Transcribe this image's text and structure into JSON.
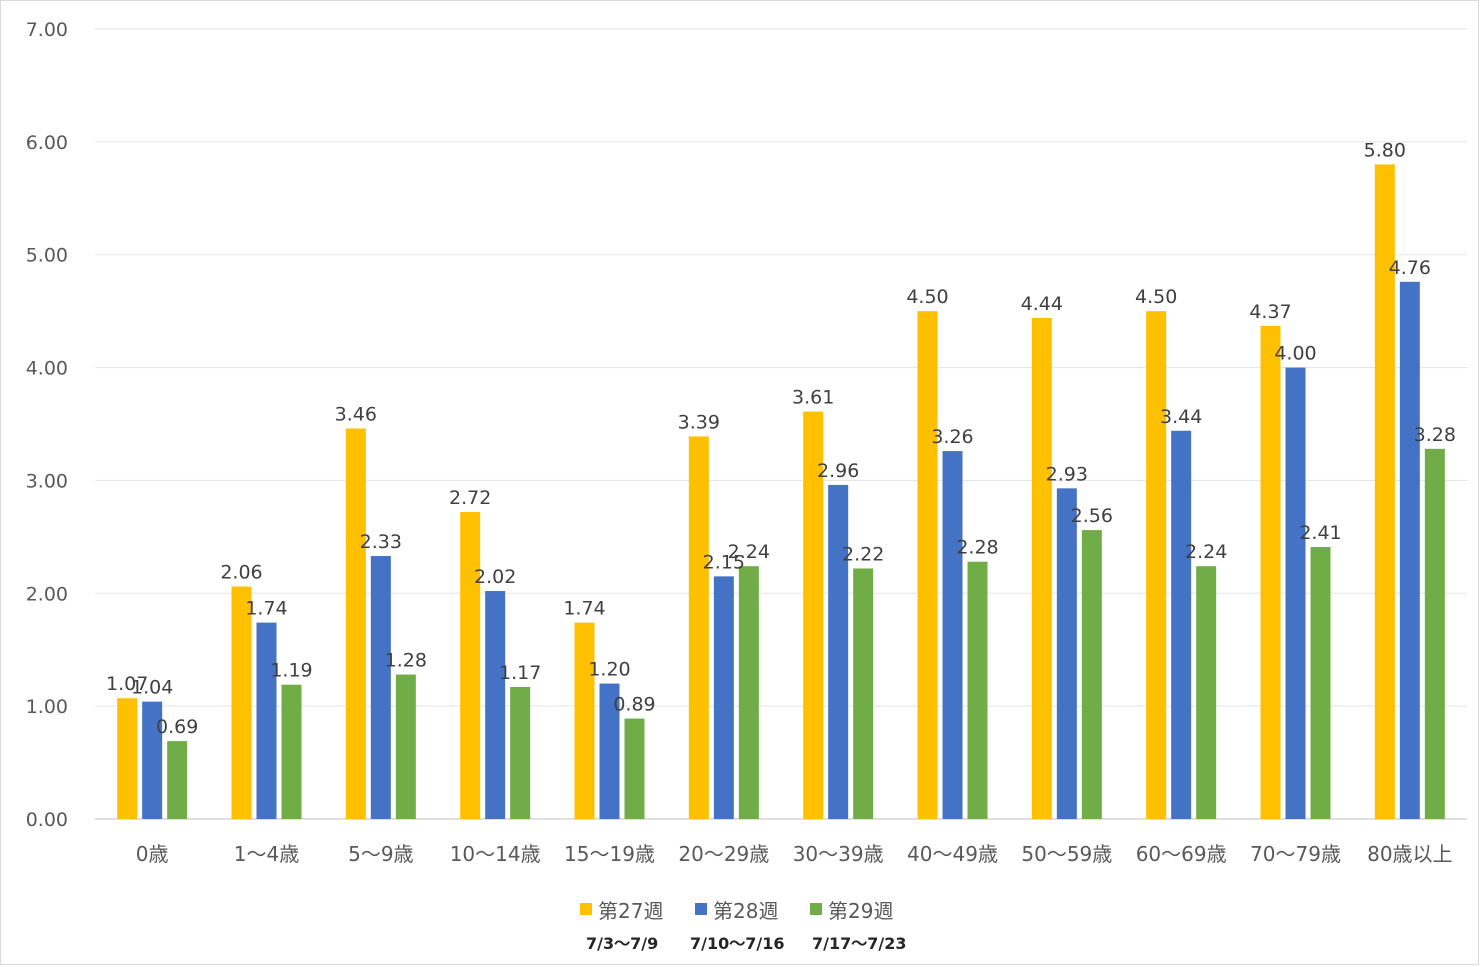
{
  "chart_data": {
    "type": "bar",
    "categories": [
      "0歳",
      "1～4歳",
      "5～9歳",
      "10～14歳",
      "15～19歳",
      "20～29歳",
      "30～39歳",
      "40～49歳",
      "50～59歳",
      "60～69歳",
      "70～79歳",
      "80歳以上"
    ],
    "series": [
      {
        "name": "第27週",
        "period": "7/3～7/9",
        "color": "#ffc000",
        "values": [
          1.07,
          2.06,
          3.46,
          2.72,
          1.74,
          3.39,
          3.61,
          4.5,
          4.44,
          4.5,
          4.37,
          5.8
        ]
      },
      {
        "name": "第28週",
        "period": "7/10～7/16",
        "color": "#4472c4",
        "values": [
          1.04,
          1.74,
          2.33,
          2.02,
          1.2,
          2.15,
          2.96,
          3.26,
          2.93,
          3.44,
          4.0,
          4.76
        ]
      },
      {
        "name": "第29週",
        "period": "7/17～7/23",
        "color": "#70ad47",
        "values": [
          0.69,
          1.19,
          1.28,
          1.17,
          0.89,
          2.24,
          2.22,
          2.28,
          2.56,
          2.24,
          2.41,
          3.28
        ]
      }
    ],
    "yticks": [
      "0.00",
      "1.00",
      "2.00",
      "3.00",
      "4.00",
      "5.00",
      "6.00",
      "7.00"
    ],
    "ylim": [
      0,
      7
    ],
    "grid": true,
    "legend_position": "bottom",
    "title": "",
    "xlabel": "",
    "ylabel": ""
  }
}
